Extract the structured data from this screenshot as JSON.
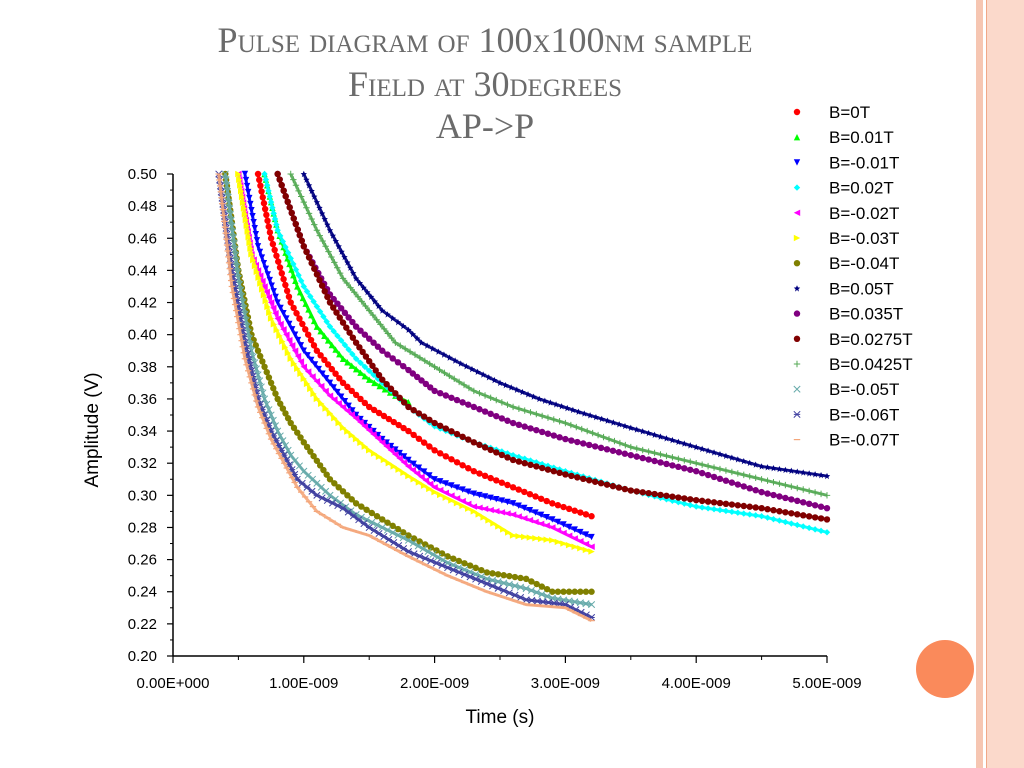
{
  "slide": {
    "title_lines": [
      "Pulse diagram of 100x100nm sample",
      "Field at 30degrees",
      "AP->P"
    ],
    "colors": {
      "title": "#6b6b6b",
      "accent_circle": "#fa8a5b",
      "border_band": "#fbd9cb"
    }
  },
  "chart_data": {
    "type": "scatter",
    "xlabel": "Time (s)",
    "ylabel": "Amplitude (V)",
    "xlim": [
      0,
      5e-09
    ],
    "ylim": [
      0.2,
      0.5
    ],
    "xticks": [
      0,
      1e-09,
      2e-09,
      3e-09,
      4e-09,
      5e-09
    ],
    "xtick_labels": [
      "0.00E+000",
      "1.00E-009",
      "2.00E-009",
      "3.00E-009",
      "4.00E-009",
      "5.00E-009"
    ],
    "yticks": [
      0.2,
      0.22,
      0.24,
      0.26,
      0.28,
      0.3,
      0.32,
      0.34,
      0.36,
      0.38,
      0.4,
      0.42,
      0.44,
      0.46,
      0.48,
      0.5
    ],
    "ytick_labels": [
      "0.20",
      "0.22",
      "0.24",
      "0.26",
      "0.28",
      "0.30",
      "0.32",
      "0.34",
      "0.36",
      "0.38",
      "0.40",
      "0.42",
      "0.44",
      "0.46",
      "0.48",
      "0.50"
    ],
    "grid": false,
    "legend_position": "top-right",
    "series": [
      {
        "name": "B=0T",
        "color": "#ff0000",
        "marker": "circle",
        "x": [
          6.5e-10,
          7.5e-10,
          9e-10,
          1.1e-09,
          1.3e-09,
          1.5e-09,
          1.8e-09,
          2e-09,
          2.3e-09,
          2.6e-09,
          2.9e-09,
          3.2e-09
        ],
        "y": [
          0.5,
          0.46,
          0.42,
          0.39,
          0.37,
          0.355,
          0.34,
          0.328,
          0.315,
          0.305,
          0.295,
          0.287
        ]
      },
      {
        "name": "B=0.01T",
        "color": "#00ff00",
        "marker": "triangle-up",
        "x": [
          7e-10,
          8e-10,
          9.5e-10,
          1.1e-09,
          1.3e-09,
          1.5e-09,
          1.7e-09,
          1.8e-09
        ],
        "y": [
          0.5,
          0.465,
          0.43,
          0.405,
          0.385,
          0.372,
          0.362,
          0.358
        ]
      },
      {
        "name": "B=-0.01T",
        "color": "#0000ff",
        "marker": "triangle-down",
        "x": [
          5.5e-10,
          6.5e-10,
          8e-10,
          1e-09,
          1.2e-09,
          1.4e-09,
          1.6e-09,
          1.8e-09,
          2e-09,
          2.3e-09,
          2.6e-09,
          2.9e-09,
          3.2e-09
        ],
        "y": [
          0.5,
          0.455,
          0.42,
          0.39,
          0.37,
          0.35,
          0.335,
          0.322,
          0.31,
          0.301,
          0.295,
          0.285,
          0.274
        ]
      },
      {
        "name": "B=0.02T",
        "color": "#00ffff",
        "marker": "diamond",
        "x": [
          7e-10,
          8e-10,
          1e-09,
          1.2e-09,
          1.4e-09,
          1.6e-09,
          1.8e-09,
          2e-09,
          2.3e-09,
          2.6e-09,
          3e-09,
          3.5e-09,
          4e-09,
          4.5e-09,
          5e-09
        ],
        "y": [
          0.5,
          0.465,
          0.43,
          0.405,
          0.385,
          0.37,
          0.355,
          0.343,
          0.333,
          0.325,
          0.315,
          0.303,
          0.293,
          0.287,
          0.277
        ]
      },
      {
        "name": "B=-0.02T",
        "color": "#ff00ff",
        "marker": "triangle-left",
        "x": [
          5e-10,
          6e-10,
          8e-10,
          1e-09,
          1.2e-09,
          1.4e-09,
          1.6e-09,
          1.8e-09,
          2e-09,
          2.3e-09,
          2.6e-09,
          2.9e-09,
          3.2e-09
        ],
        "y": [
          0.5,
          0.45,
          0.41,
          0.38,
          0.362,
          0.348,
          0.333,
          0.318,
          0.305,
          0.293,
          0.288,
          0.28,
          0.268
        ]
      },
      {
        "name": "B=-0.03T",
        "color": "#ffff00",
        "marker": "triangle-right",
        "x": [
          5e-10,
          6e-10,
          7.5e-10,
          9e-10,
          1.1e-09,
          1.3e-09,
          1.5e-09,
          1.8e-09,
          2e-09,
          2.3e-09,
          2.6e-09,
          2.9e-09,
          3.2e-09
        ],
        "y": [
          0.5,
          0.45,
          0.41,
          0.385,
          0.36,
          0.342,
          0.328,
          0.312,
          0.302,
          0.29,
          0.275,
          0.272,
          0.265
        ]
      },
      {
        "name": "B=-0.04T",
        "color": "#808000",
        "marker": "hexagon",
        "x": [
          4e-10,
          5e-10,
          6e-10,
          7e-10,
          8e-10,
          9e-10,
          1e-09,
          1.2e-09,
          1.4e-09,
          1.6e-09,
          1.8e-09,
          2.1e-09,
          2.4e-09,
          2.7e-09,
          2.9e-09,
          3.2e-09
        ],
        "y": [
          0.5,
          0.44,
          0.4,
          0.38,
          0.36,
          0.345,
          0.333,
          0.31,
          0.295,
          0.285,
          0.275,
          0.262,
          0.252,
          0.248,
          0.24,
          0.24
        ]
      },
      {
        "name": "B=0.05T",
        "color": "#000080",
        "marker": "star",
        "x": [
          1e-09,
          1.2e-09,
          1.4e-09,
          1.6e-09,
          1.8e-09,
          1.9e-09,
          2.2e-09,
          2.5e-09,
          2.8e-09,
          3.1e-09,
          3.5e-09,
          4e-09,
          4.5e-09,
          5e-09
        ],
        "y": [
          0.5,
          0.465,
          0.435,
          0.415,
          0.403,
          0.395,
          0.382,
          0.37,
          0.36,
          0.352,
          0.342,
          0.33,
          0.318,
          0.312
        ]
      },
      {
        "name": "B=0.035T",
        "color": "#800080",
        "marker": "circle",
        "x": [
          8e-10,
          1e-09,
          1.2e-09,
          1.4e-09,
          1.6e-09,
          1.8e-09,
          2e-09,
          2.3e-09,
          2.6e-09,
          3e-09,
          3.5e-09,
          4e-09,
          4.5e-09,
          5e-09
        ],
        "y": [
          0.5,
          0.455,
          0.425,
          0.405,
          0.39,
          0.378,
          0.365,
          0.355,
          0.345,
          0.335,
          0.325,
          0.315,
          0.302,
          0.292
        ]
      },
      {
        "name": "B=0.0275T",
        "color": "#800000",
        "marker": "circle",
        "x": [
          8e-10,
          1e-09,
          1.2e-09,
          1.4e-09,
          1.6e-09,
          1.8e-09,
          2e-09,
          2.3e-09,
          2.6e-09,
          3e-09,
          3.5e-09,
          4e-09,
          4.5e-09,
          5e-09
        ],
        "y": [
          0.5,
          0.455,
          0.42,
          0.395,
          0.372,
          0.355,
          0.345,
          0.333,
          0.322,
          0.313,
          0.303,
          0.297,
          0.292,
          0.285
        ]
      },
      {
        "name": "B=0.0425T",
        "color": "#55aa55",
        "marker": "plus",
        "x": [
          9e-10,
          1.1e-09,
          1.3e-09,
          1.5e-09,
          1.7e-09,
          2e-09,
          2.3e-09,
          2.6e-09,
          3e-09,
          3.5e-09,
          4e-09,
          4.5e-09,
          5e-09
        ],
        "y": [
          0.5,
          0.465,
          0.435,
          0.415,
          0.395,
          0.38,
          0.365,
          0.355,
          0.345,
          0.33,
          0.32,
          0.31,
          0.3
        ]
      },
      {
        "name": "B=-0.05T",
        "color": "#66aaaa",
        "marker": "x",
        "x": [
          4e-10,
          5e-10,
          6e-10,
          7e-10,
          8e-10,
          9e-10,
          1e-09,
          1.2e-09,
          1.4e-09,
          1.6e-09,
          1.8e-09,
          2.1e-09,
          2.4e-09,
          2.7e-09,
          2.9e-09,
          3.2e-09
        ],
        "y": [
          0.5,
          0.435,
          0.39,
          0.36,
          0.34,
          0.325,
          0.315,
          0.3,
          0.288,
          0.28,
          0.272,
          0.258,
          0.248,
          0.242,
          0.236,
          0.232
        ]
      },
      {
        "name": "B=-0.06T",
        "color": "#4040a0",
        "marker": "asterisk",
        "x": [
          3.5e-10,
          4.5e-10,
          5.5e-10,
          6.5e-10,
          7.5e-10,
          8.5e-10,
          9.5e-10,
          1.1e-09,
          1.3e-09,
          1.5e-09,
          1.8e-09,
          2.1e-09,
          2.4e-09,
          2.7e-09,
          3e-09,
          3.2e-09
        ],
        "y": [
          0.5,
          0.44,
          0.395,
          0.36,
          0.34,
          0.325,
          0.31,
          0.3,
          0.292,
          0.28,
          0.265,
          0.255,
          0.245,
          0.235,
          0.232,
          0.224
        ]
      },
      {
        "name": "B=-0.07T",
        "color": "#f4a67a",
        "marker": "dash",
        "x": [
          3.5e-10,
          4.5e-10,
          5.5e-10,
          6.5e-10,
          7.5e-10,
          8.5e-10,
          9.5e-10,
          1.1e-09,
          1.3e-09,
          1.5e-09,
          1.8e-09,
          2.1e-09,
          2.4e-09,
          2.7e-09,
          3e-09,
          3.2e-09
        ],
        "y": [
          0.5,
          0.43,
          0.385,
          0.355,
          0.335,
          0.32,
          0.305,
          0.29,
          0.28,
          0.275,
          0.262,
          0.25,
          0.24,
          0.232,
          0.23,
          0.222
        ]
      }
    ]
  }
}
